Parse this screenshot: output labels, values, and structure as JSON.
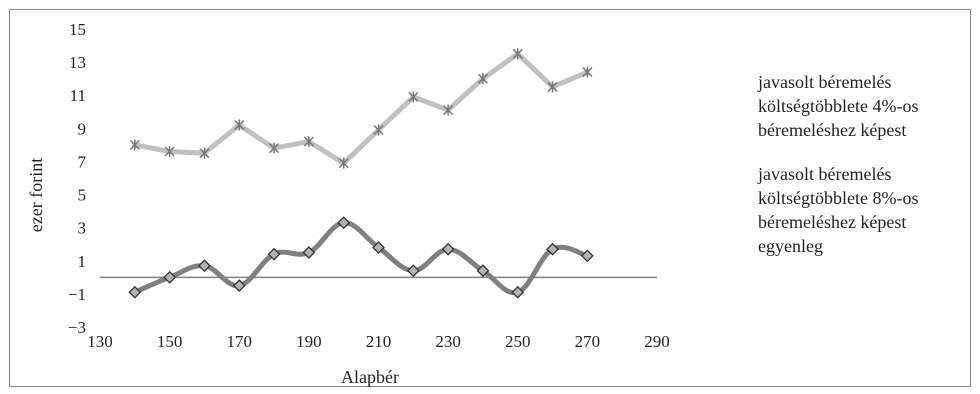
{
  "chart_data": {
    "type": "line",
    "xlabel": "Alapbér",
    "ylabel": "ezer forint",
    "xlim": [
      130,
      290
    ],
    "ylim": [
      -3,
      15
    ],
    "xticks": [
      130,
      150,
      170,
      190,
      210,
      230,
      250,
      270,
      290
    ],
    "yticks": [
      -3,
      -1,
      1,
      3,
      5,
      7,
      9,
      11,
      13,
      15
    ],
    "ytick_labels": [
      "−3",
      "−1",
      "1",
      "3",
      "5",
      "7",
      "9",
      "11",
      "13",
      "15"
    ],
    "zero_line": true,
    "grid": false,
    "legend_position": "right",
    "series": [
      {
        "legend_lines": [
          "javasolt béremelés",
          "költségtöbblete 4%-os",
          "béremeléshez képest"
        ],
        "marker": "star",
        "color": "#c0c0c0",
        "marker_color": "#777777",
        "x": [
          140,
          150,
          160,
          170,
          180,
          190,
          200,
          210,
          220,
          230,
          240,
          250,
          260,
          270
        ],
        "y": [
          8.0,
          7.6,
          7.5,
          9.2,
          7.8,
          8.2,
          6.9,
          8.9,
          10.9,
          10.1,
          12.0,
          13.5,
          11.5,
          12.4
        ]
      },
      {
        "legend_lines": [
          "javasolt béremelés",
          "költségtöbblete 8%-os",
          "béremeléshez képest",
          "egyenleg"
        ],
        "marker": "diamond",
        "color": "#808080",
        "marker_color": "#b3b3b3",
        "x": [
          140,
          150,
          160,
          170,
          180,
          190,
          200,
          210,
          220,
          230,
          240,
          250,
          260,
          270
        ],
        "y": [
          -0.9,
          0.0,
          0.7,
          -0.5,
          1.4,
          1.5,
          3.3,
          1.8,
          0.4,
          1.7,
          0.4,
          -0.9,
          1.7,
          1.3
        ]
      }
    ]
  }
}
